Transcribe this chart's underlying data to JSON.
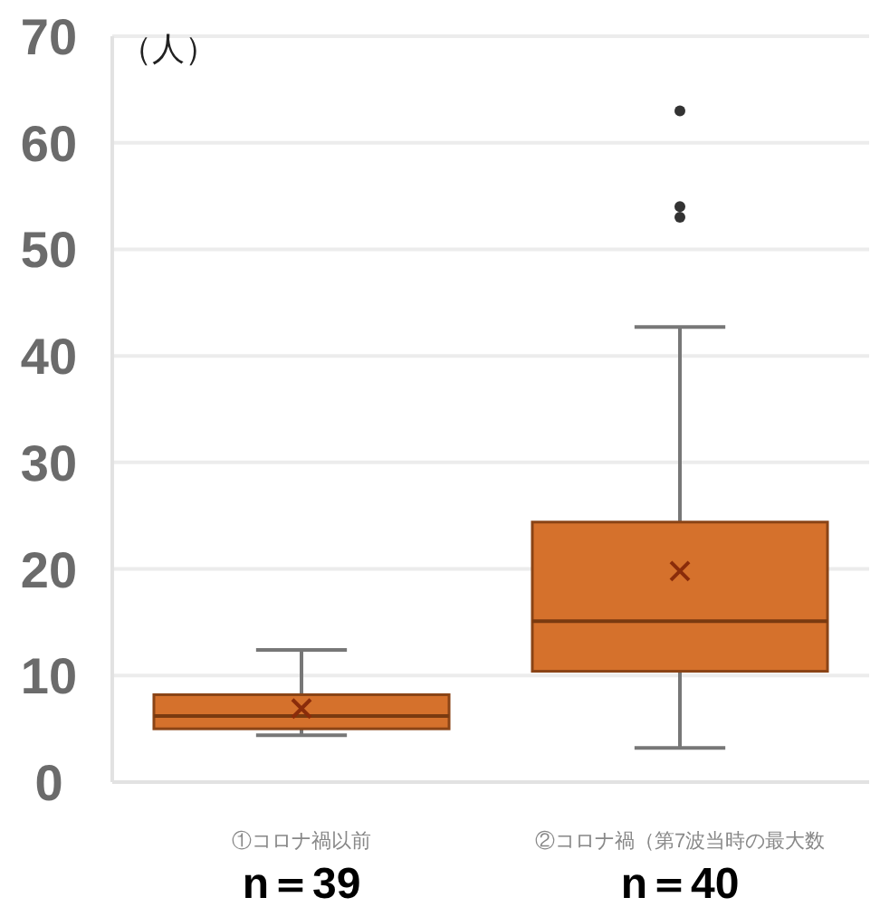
{
  "chart_data": {
    "type": "box",
    "ylabel": "（人）",
    "categories": [
      "①コロナ禍以前",
      "②コロナ禍（第7波当時の最大数"
    ],
    "series": [
      {
        "color": "#d5712c",
        "boxes": [
          {
            "low": 4.4,
            "q1": 5,
            "median": 6.2,
            "q3": 8.2,
            "high": 12.4,
            "mean": 6.9
          },
          {
            "low": 3.2,
            "q1": 10.4,
            "median": 15.1,
            "q3": 24.4,
            "high": 42.7,
            "mean": 19.8,
            "outliers": [
              53,
              54,
              63
            ]
          }
        ]
      }
    ],
    "ylim": [
      0,
      70
    ],
    "yticks": [
      0,
      10,
      20,
      30,
      40,
      50,
      60,
      70
    ],
    "grid": "y",
    "annotations": [
      "n＝39",
      "n＝40"
    ]
  }
}
